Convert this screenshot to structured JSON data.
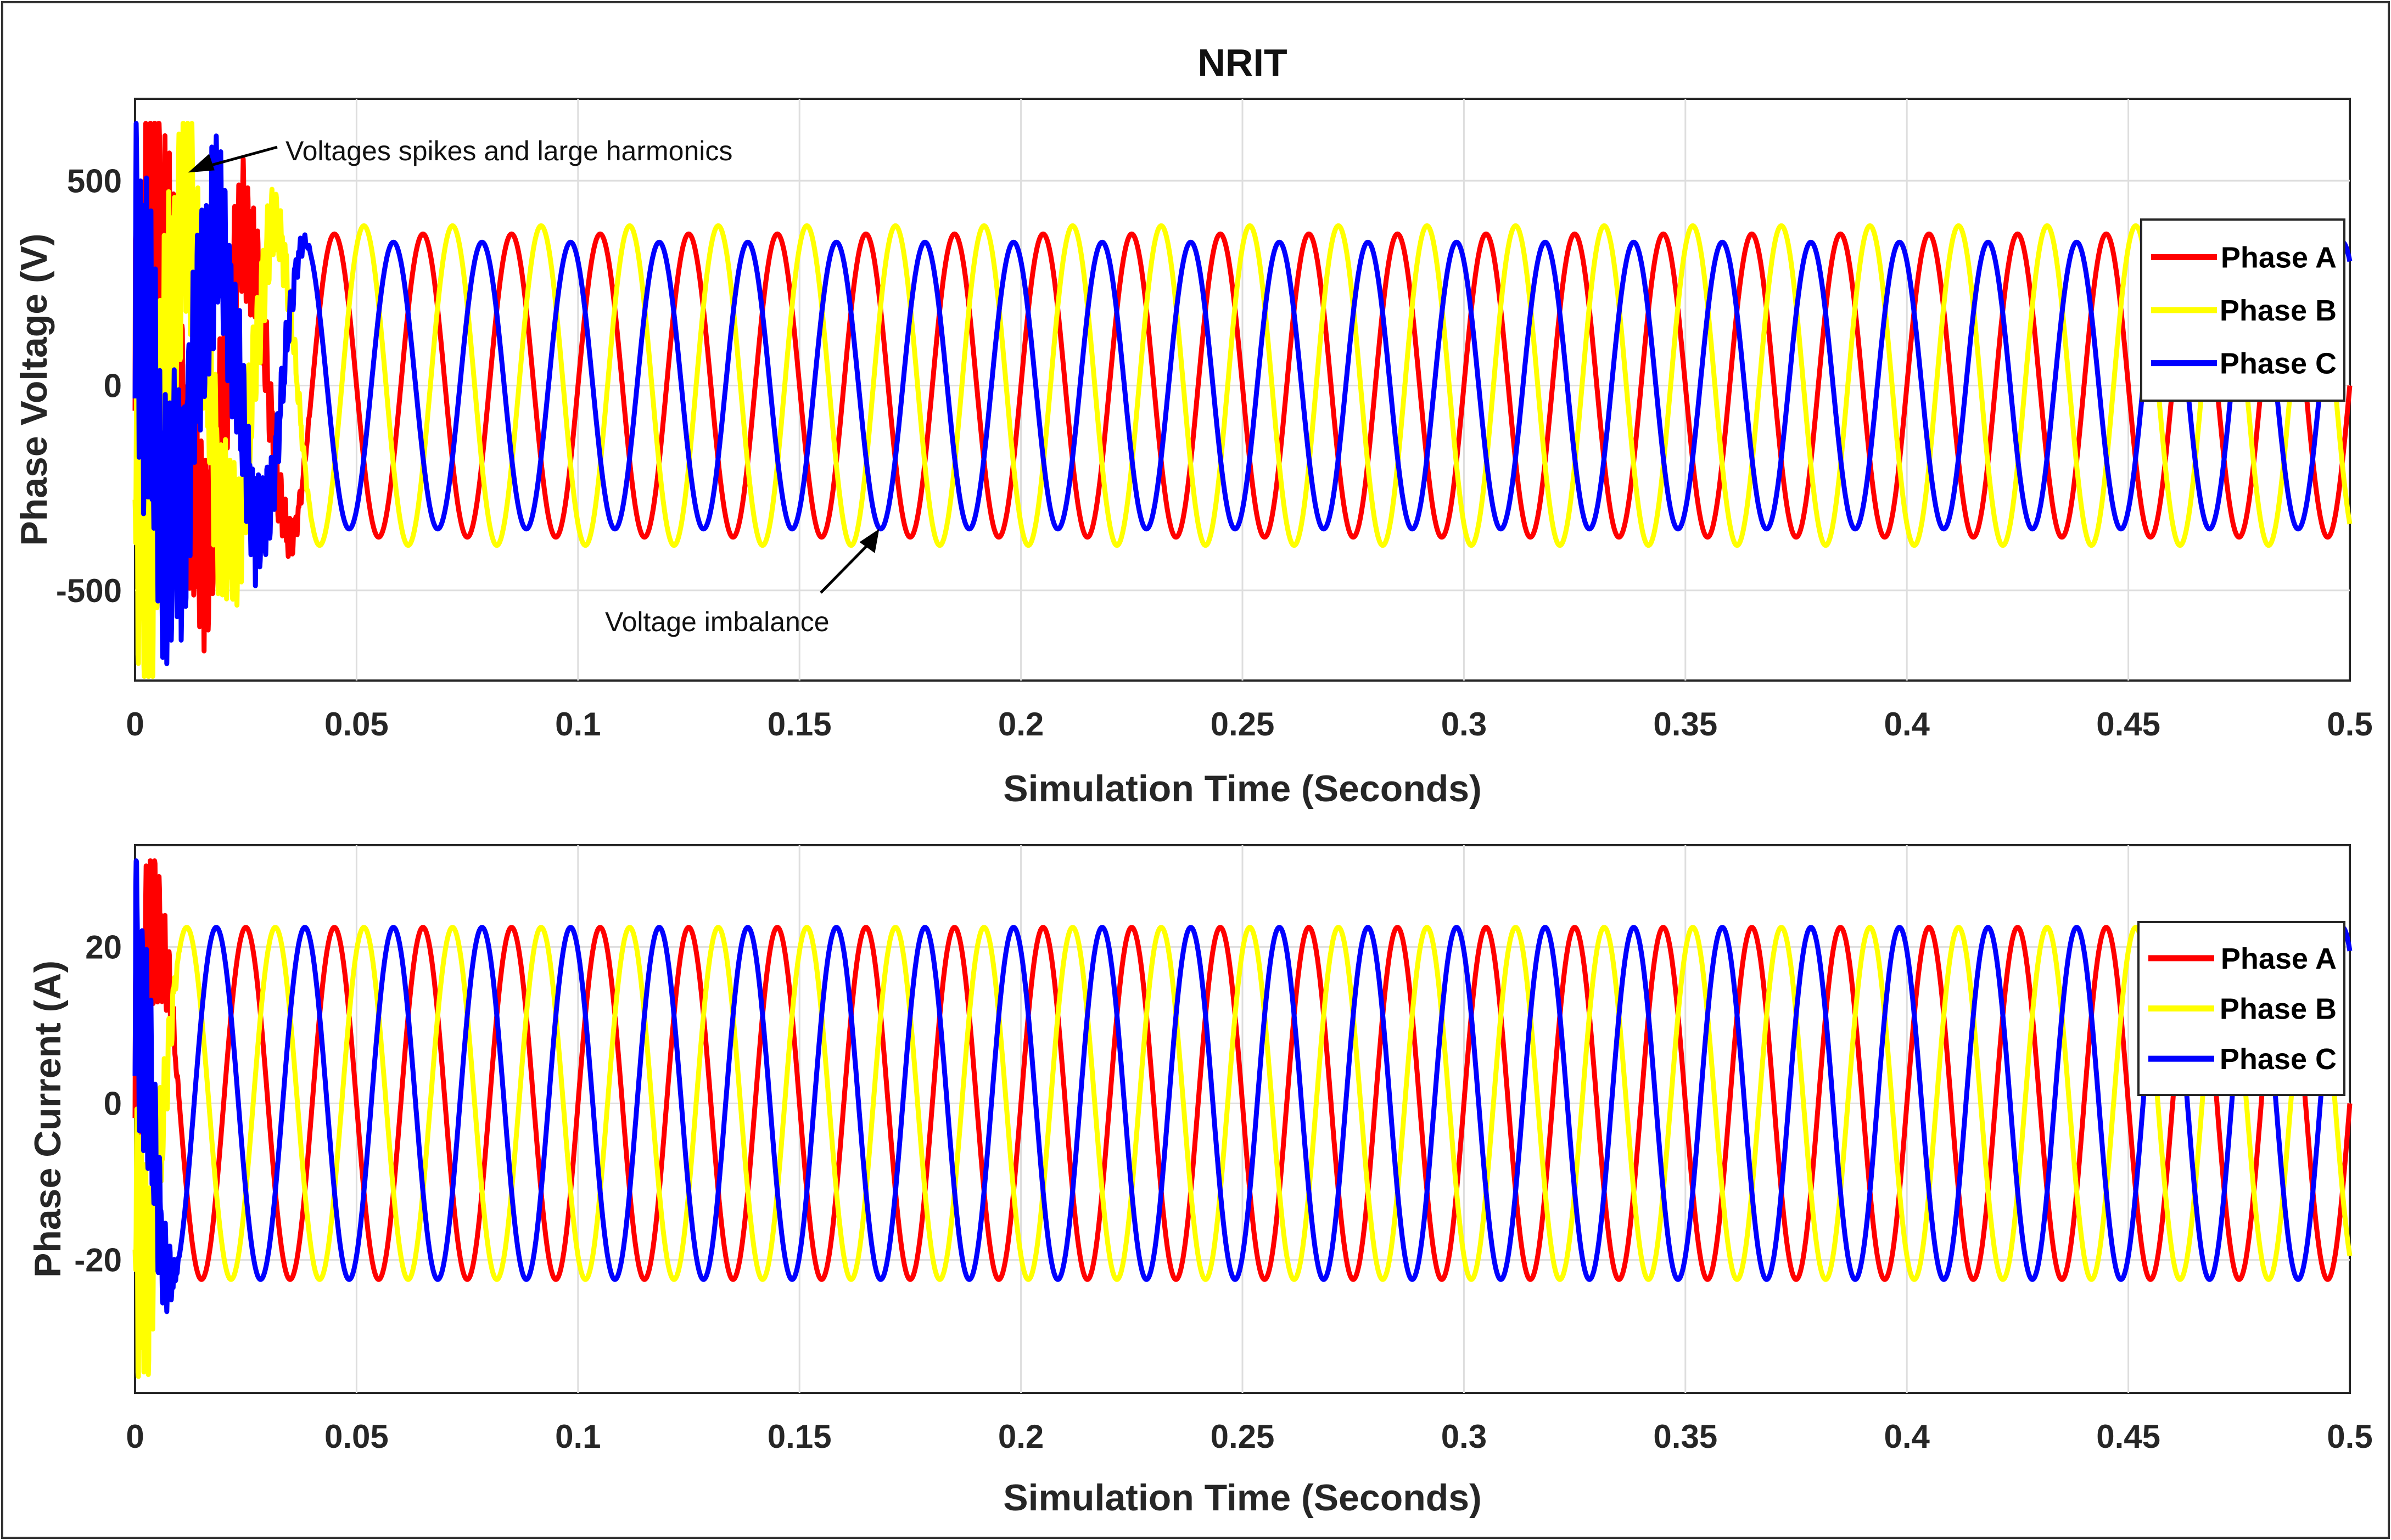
{
  "chart_data": [
    {
      "type": "line",
      "title": "NRIT",
      "xlabel": "Simulation Time (Seconds)",
      "ylabel": "Phase Voltage (V)",
      "xlim": [
        0,
        0.5
      ],
      "ylim": [
        -720,
        700
      ],
      "grid": true,
      "xticks": [
        0,
        0.05,
        0.1,
        0.15,
        0.2,
        0.25,
        0.3,
        0.35,
        0.4,
        0.45,
        0.5
      ],
      "xtick_labels": [
        "0",
        "0.05",
        "0.1",
        "0.15",
        "0.2",
        "0.25",
        "0.3",
        "0.35",
        "0.4",
        "0.45",
        "0.5"
      ],
      "yticks": [
        -500,
        0,
        500
      ],
      "ytick_labels": [
        "-500",
        "0",
        "500"
      ],
      "frequency_hz": 50,
      "transient_end_s": 0.04,
      "legend_position": "top-right",
      "series": [
        {
          "name": "Phase A",
          "color": "#ff0000",
          "amplitude": 370,
          "phase_deg": 0
        },
        {
          "name": "Phase B",
          "color": "#ffff00",
          "amplitude": 390,
          "phase_deg": -120
        },
        {
          "name": "Phase C",
          "color": "#0000ff",
          "amplitude": 350,
          "phase_deg": 120
        }
      ],
      "transient": {
        "spike_max": 640,
        "spike_min": -710
      },
      "annotations": [
        {
          "text": "Voltages spikes and large harmonics",
          "x": 0.012,
          "y": 520
        },
        {
          "text": "Voltage imbalance",
          "x": 0.168,
          "y": -350
        }
      ]
    },
    {
      "type": "line",
      "title": "",
      "xlabel": "Simulation Time (Seconds)",
      "ylabel": "Phase Current (A)",
      "xlim": [
        0,
        0.5
      ],
      "ylim": [
        -37,
        33
      ],
      "grid": true,
      "xticks": [
        0,
        0.05,
        0.1,
        0.15,
        0.2,
        0.25,
        0.3,
        0.35,
        0.4,
        0.45,
        0.5
      ],
      "xtick_labels": [
        "0",
        "0.05",
        "0.1",
        "0.15",
        "0.2",
        "0.25",
        "0.3",
        "0.35",
        "0.4",
        "0.45",
        "0.5"
      ],
      "yticks": [
        -20,
        0,
        20
      ],
      "ytick_labels": [
        "-20",
        "0",
        "20"
      ],
      "frequency_hz": 50,
      "transient_end_s": 0.01,
      "legend_position": "top-right",
      "series": [
        {
          "name": "Phase A",
          "color": "#ff0000",
          "amplitude": 22.5,
          "phase_deg": 0
        },
        {
          "name": "Phase B",
          "color": "#ffff00",
          "amplitude": 22.5,
          "phase_deg": -120
        },
        {
          "name": "Phase C",
          "color": "#0000ff",
          "amplitude": 22.5,
          "phase_deg": 120
        }
      ],
      "transient": {
        "spike_max": 31,
        "spike_min": -35
      },
      "annotations": []
    }
  ]
}
